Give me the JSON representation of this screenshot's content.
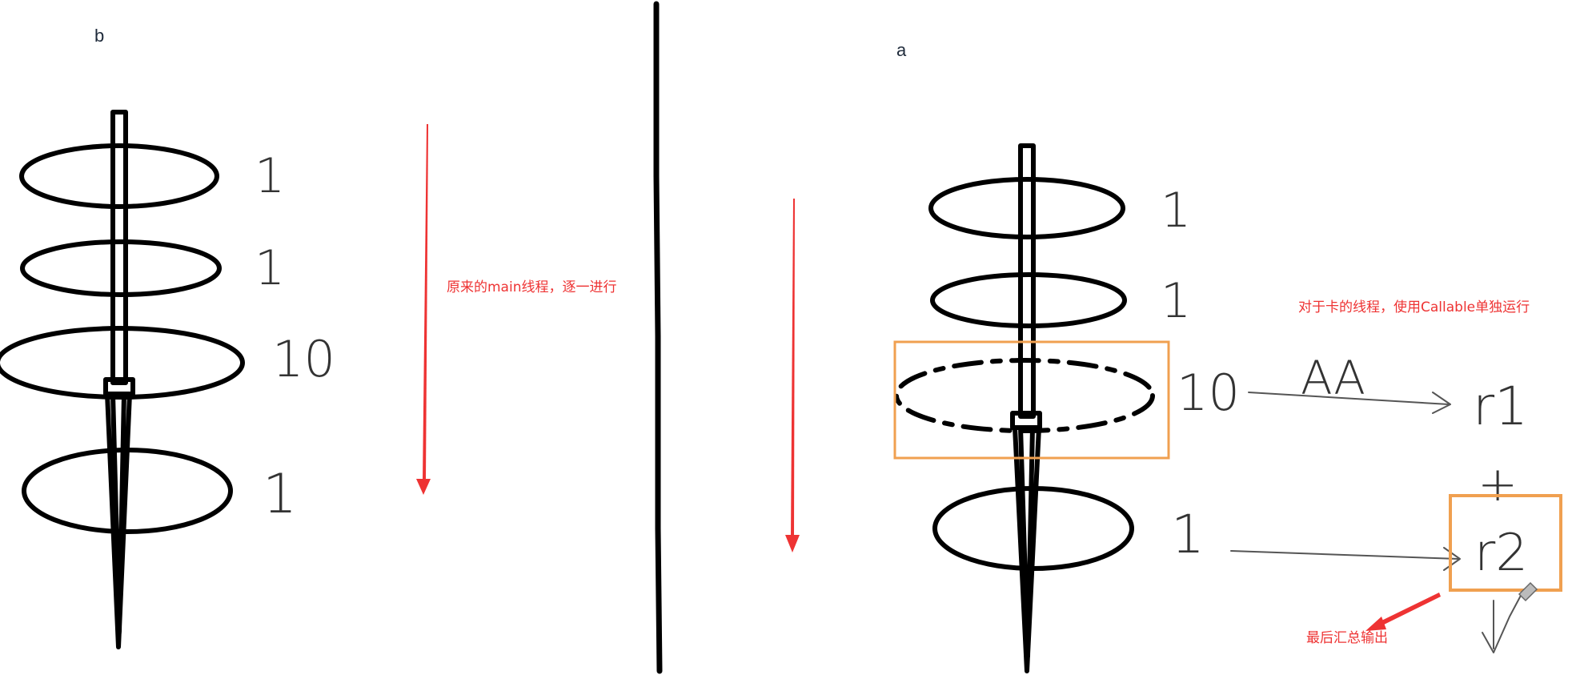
{
  "panel_b": {
    "label": "b",
    "note": "原来的main线程，逐一进行",
    "marks": [
      "1",
      "1",
      "10",
      "1"
    ]
  },
  "panel_a": {
    "label": "a",
    "note_callable": "对于卡的线程，使用Callable单独运行",
    "note_summary": "最后汇总输出",
    "marks": [
      "1",
      "1",
      "10",
      "1"
    ],
    "arrow_label": "AA",
    "result_1": "r1",
    "plus": "+",
    "result_2": "r2"
  },
  "colors": {
    "ink": "#000000",
    "note_text": "#ee3333",
    "arrow": "#ee3333",
    "highlight_box": "#f0a050",
    "pencil": "#555555"
  }
}
